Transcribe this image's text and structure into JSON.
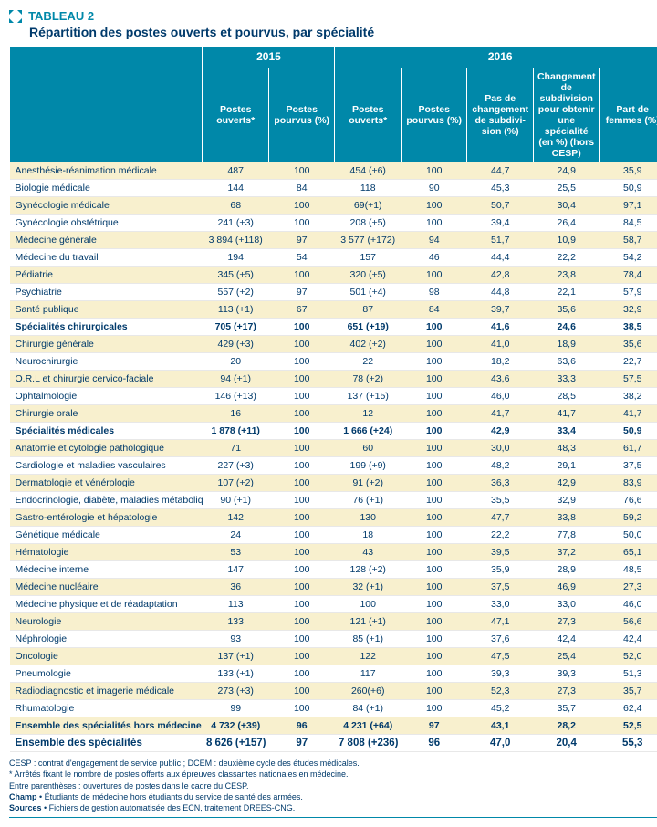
{
  "title": {
    "label": "TABLEAU 2",
    "subtitle": "Répartition des postes ouverts et pourvus, par spécialité"
  },
  "columns": {
    "year2015": "2015",
    "year2016": "2016",
    "postes_ouverts": "Postes ouverts*",
    "postes_pourvus": "Postes pourvus (%)",
    "pas_changement": "Pas de changement de subdivi- sion (%)",
    "changement": "Changement de subdivision pour obtenir une spécialité (en %) (hors CESP)",
    "part_femmes": "Part de femmes (%)"
  },
  "rows": [
    {
      "label": "Anesthésie-réanimation médicale",
      "o15": "487",
      "p15": "100",
      "o16": "454 (+6)",
      "p16": "100",
      "nc": "44,7",
      "ch": "24,9",
      "pf": "35,9",
      "style": "even"
    },
    {
      "label": "Biologie médicale",
      "o15": "144",
      "p15": "84",
      "o16": "118",
      "p16": "90",
      "nc": "45,3",
      "ch": "25,5",
      "pf": "50,9",
      "style": "odd"
    },
    {
      "label": "Gynécologie médicale",
      "o15": "68",
      "p15": "100",
      "o16": "69(+1)",
      "p16": "100",
      "nc": "50,7",
      "ch": "30,4",
      "pf": "97,1",
      "style": "even"
    },
    {
      "label": "Gynécologie obstétrique",
      "o15": "241 (+3)",
      "p15": "100",
      "o16": "208 (+5)",
      "p16": "100",
      "nc": "39,4",
      "ch": "26,4",
      "pf": "84,5",
      "style": "odd"
    },
    {
      "label": "Médecine générale",
      "o15": "3 894 (+118)",
      "p15": "97",
      "o16": "3 577 (+172)",
      "p16": "94",
      "nc": "51,7",
      "ch": "10,9",
      "pf": "58,7",
      "style": "even"
    },
    {
      "label": "Médecine du travail",
      "o15": "194",
      "p15": "54",
      "o16": "157",
      "p16": "46",
      "nc": "44,4",
      "ch": "22,2",
      "pf": "54,2",
      "style": "odd"
    },
    {
      "label": "Pédiatrie",
      "o15": "345 (+5)",
      "p15": "100",
      "o16": "320 (+5)",
      "p16": "100",
      "nc": "42,8",
      "ch": "23,8",
      "pf": "78,4",
      "style": "even"
    },
    {
      "label": "Psychiatrie",
      "o15": "557 (+2)",
      "p15": "97",
      "o16": "501 (+4)",
      "p16": "98",
      "nc": "44,8",
      "ch": "22,1",
      "pf": "57,9",
      "style": "odd"
    },
    {
      "label": "Santé publique",
      "o15": "113 (+1)",
      "p15": "67",
      "o16": "87",
      "p16": "84",
      "nc": "39,7",
      "ch": "35,6",
      "pf": "32,9",
      "style": "even"
    },
    {
      "label": "Spécialités chirurgicales",
      "o15": "705 (+17)",
      "p15": "100",
      "o16": "651 (+19)",
      "p16": "100",
      "nc": "41,6",
      "ch": "24,6",
      "pf": "38,5",
      "style": "odd bold"
    },
    {
      "label": "Chirurgie générale",
      "o15": "429 (+3)",
      "p15": "100",
      "o16": "402 (+2)",
      "p16": "100",
      "nc": "41,0",
      "ch": "18,9",
      "pf": "35,6",
      "style": "even"
    },
    {
      "label": "Neurochirurgie",
      "o15": "20",
      "p15": "100",
      "o16": "22",
      "p16": "100",
      "nc": "18,2",
      "ch": "63,6",
      "pf": "22,7",
      "style": "odd"
    },
    {
      "label": "O.R.L et chirurgie cervico-faciale",
      "o15": "94 (+1)",
      "p15": "100",
      "o16": "78 (+2)",
      "p16": "100",
      "nc": "43,6",
      "ch": "33,3",
      "pf": "57,5",
      "style": "even"
    },
    {
      "label": "Ophtalmologie",
      "o15": "146 (+13)",
      "p15": "100",
      "o16": "137 (+15)",
      "p16": "100",
      "nc": "46,0",
      "ch": "28,5",
      "pf": "38,2",
      "style": "odd"
    },
    {
      "label": "Chirurgie orale",
      "o15": "16",
      "p15": "100",
      "o16": "12",
      "p16": "100",
      "nc": "41,7",
      "ch": "41,7",
      "pf": "41,7",
      "style": "even"
    },
    {
      "label": "Spécialités médicales",
      "o15": "1 878 (+11)",
      "p15": "100",
      "o16": "1 666 (+24)",
      "p16": "100",
      "nc": "42,9",
      "ch": "33,4",
      "pf": "50,9",
      "style": "odd bold"
    },
    {
      "label": "Anatomie et cytologie pathologique",
      "o15": "71",
      "p15": "100",
      "o16": "60",
      "p16": "100",
      "nc": "30,0",
      "ch": "48,3",
      "pf": "61,7",
      "style": "even"
    },
    {
      "label": "Cardiologie et maladies vasculaires",
      "o15": "227 (+3)",
      "p15": "100",
      "o16": "199 (+9)",
      "p16": "100",
      "nc": "48,2",
      "ch": "29,1",
      "pf": "37,5",
      "style": "odd"
    },
    {
      "label": "Dermatologie et vénérologie",
      "o15": "107 (+2)",
      "p15": "100",
      "o16": "91 (+2)",
      "p16": "100",
      "nc": "36,3",
      "ch": "42,9",
      "pf": "83,9",
      "style": "even"
    },
    {
      "label": "Endocrinologie, diabète, maladies métaboliques",
      "o15": "90 (+1)",
      "p15": "100",
      "o16": "76 (+1)",
      "p16": "100",
      "nc": "35,5",
      "ch": "32,9",
      "pf": "76,6",
      "style": "odd"
    },
    {
      "label": "Gastro-entérologie et hépatologie",
      "o15": "142",
      "p15": "100",
      "o16": "130",
      "p16": "100",
      "nc": "47,7",
      "ch": "33,8",
      "pf": "59,2",
      "style": "even"
    },
    {
      "label": "Génétique médicale",
      "o15": "24",
      "p15": "100",
      "o16": "18",
      "p16": "100",
      "nc": "22,2",
      "ch": "77,8",
      "pf": "50,0",
      "style": "odd"
    },
    {
      "label": "Hématologie",
      "o15": "53",
      "p15": "100",
      "o16": "43",
      "p16": "100",
      "nc": "39,5",
      "ch": "37,2",
      "pf": "65,1",
      "style": "even"
    },
    {
      "label": "Médecine interne",
      "o15": "147",
      "p15": "100",
      "o16": "128 (+2)",
      "p16": "100",
      "nc": "35,9",
      "ch": "28,9",
      "pf": "48,5",
      "style": "odd"
    },
    {
      "label": "Médecine nucléaire",
      "o15": "36",
      "p15": "100",
      "o16": "32 (+1)",
      "p16": "100",
      "nc": "37,5",
      "ch": "46,9",
      "pf": "27,3",
      "style": "even"
    },
    {
      "label": "Médecine physique et de réadaptation",
      "o15": "113",
      "p15": "100",
      "o16": "100",
      "p16": "100",
      "nc": "33,0",
      "ch": "33,0",
      "pf": "46,0",
      "style": "odd"
    },
    {
      "label": "Neurologie",
      "o15": "133",
      "p15": "100",
      "o16": "121 (+1)",
      "p16": "100",
      "nc": "47,1",
      "ch": "27,3",
      "pf": "56,6",
      "style": "even"
    },
    {
      "label": "Néphrologie",
      "o15": "93",
      "p15": "100",
      "o16": "85 (+1)",
      "p16": "100",
      "nc": "37,6",
      "ch": "42,4",
      "pf": "42,4",
      "style": "odd"
    },
    {
      "label": "Oncologie",
      "o15": "137 (+1)",
      "p15": "100",
      "o16": "122",
      "p16": "100",
      "nc": "47,5",
      "ch": "25,4",
      "pf": "52,0",
      "style": "even"
    },
    {
      "label": "Pneumologie",
      "o15": "133 (+1)",
      "p15": "100",
      "o16": "117",
      "p16": "100",
      "nc": "39,3",
      "ch": "39,3",
      "pf": "51,3",
      "style": "odd"
    },
    {
      "label": "Radiodiagnostic et imagerie médicale",
      "o15": "273 (+3)",
      "p15": "100",
      "o16": "260(+6)",
      "p16": "100",
      "nc": "52,3",
      "ch": "27,3",
      "pf": "35,7",
      "style": "even"
    },
    {
      "label": "Rhumatologie",
      "o15": "99",
      "p15": "100",
      "o16": "84 (+1)",
      "p16": "100",
      "nc": "45,2",
      "ch": "35,7",
      "pf": "62,4",
      "style": "odd"
    },
    {
      "label": "Ensemble des spécialités hors médecine générale",
      "o15": "4 732 (+39)",
      "p15": "96",
      "o16": "4 231 (+64)",
      "p16": "97",
      "nc": "43,1",
      "ch": "28,2",
      "pf": "52,5",
      "style": "even bold"
    },
    {
      "label": "Ensemble des spécialités",
      "o15": "8 626 (+157)",
      "p15": "97",
      "o16": "7 808 (+236)",
      "p16": "96",
      "nc": "47,0",
      "ch": "20,4",
      "pf": "55,3",
      "style": "odd grand"
    }
  ],
  "footnotes": [
    "CESP : contrat d'engagement de service public ; DCEM : deuxième cycle des études médicales.",
    "* Arrêtés fixant le nombre de postes offerts aux épreuves classantes nationales en médecine.",
    "Entre parenthèses : ouvertures de postes dans le cadre du CESP.",
    "Champ • Étudiants de médecine hors étudiants du service de santé des armées.",
    "Sources • Fichiers de gestion automatisée des ECN, traitement DREES-CNG."
  ],
  "colors": {
    "header_bg": "#0088a9",
    "text": "#003a6b",
    "stripe": "#f8f0ce"
  }
}
